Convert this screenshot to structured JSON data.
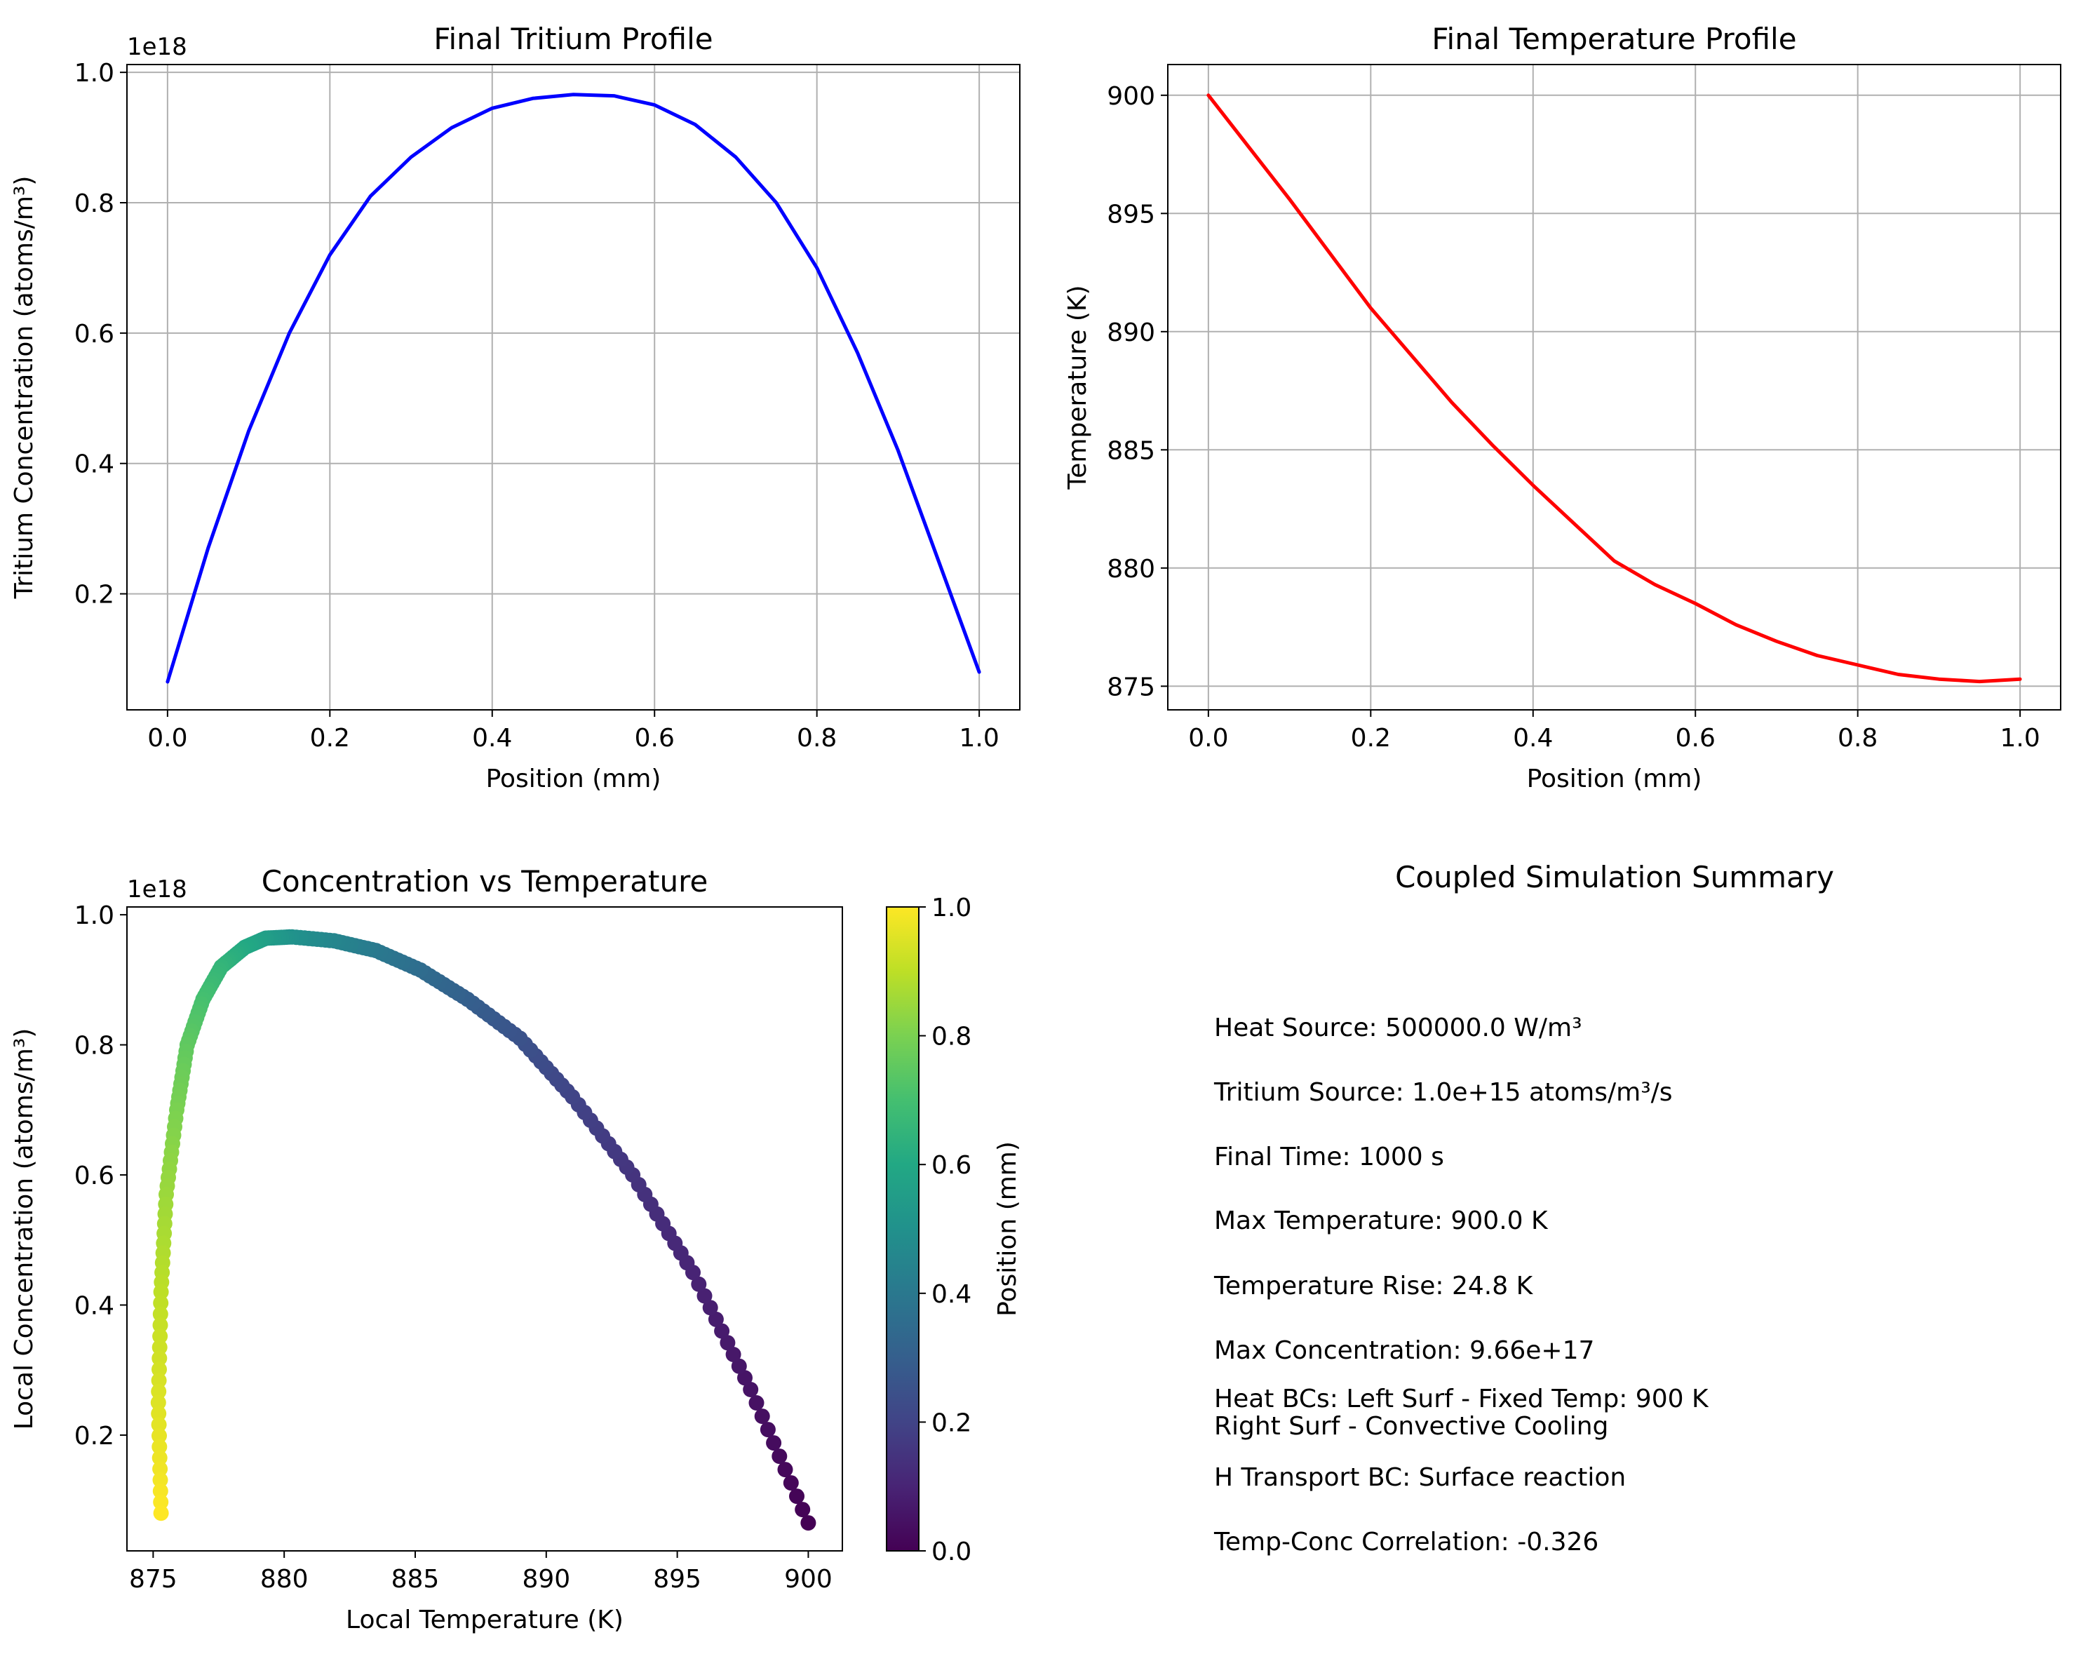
{
  "chart_data": [
    {
      "type": "line",
      "title": "Final Tritium Profile",
      "xlabel": "Position (mm)",
      "ylabel": "Tritium Concentration (atoms/m³)",
      "offset_label": "1e18",
      "xlim": [
        -0.05,
        1.05
      ],
      "ylim": [
        0.022,
        1.012
      ],
      "xticks": [
        0.0,
        0.2,
        0.4,
        0.6,
        0.8,
        1.0
      ],
      "xtick_labels": [
        "0.0",
        "0.2",
        "0.4",
        "0.6",
        "0.8",
        "1.0"
      ],
      "yticks": [
        0.2,
        0.4,
        0.6,
        0.8,
        1.0
      ],
      "ytick_labels": [
        "0.2",
        "0.4",
        "0.6",
        "0.8",
        "1.0"
      ],
      "grid": true,
      "series": [
        {
          "color": "#0000ff",
          "x": [
            0.0,
            0.05,
            0.1,
            0.15,
            0.2,
            0.25,
            0.3,
            0.35,
            0.4,
            0.45,
            0.5,
            0.55,
            0.6,
            0.65,
            0.7,
            0.75,
            0.8,
            0.85,
            0.9,
            0.95,
            1.0
          ],
          "values": [
            0.065,
            0.27,
            0.45,
            0.6,
            0.72,
            0.81,
            0.87,
            0.915,
            0.945,
            0.96,
            0.966,
            0.964,
            0.95,
            0.92,
            0.87,
            0.8,
            0.7,
            0.57,
            0.42,
            0.25,
            0.08
          ]
        }
      ]
    },
    {
      "type": "line",
      "title": "Final Temperature Profile",
      "xlabel": "Position (mm)",
      "ylabel": "Temperature (K)",
      "xlim": [
        -0.05,
        1.05
      ],
      "ylim": [
        874.0,
        901.3
      ],
      "xticks": [
        0.0,
        0.2,
        0.4,
        0.6,
        0.8,
        1.0
      ],
      "xtick_labels": [
        "0.0",
        "0.2",
        "0.4",
        "0.6",
        "0.8",
        "1.0"
      ],
      "yticks": [
        875,
        880,
        885,
        890,
        895,
        900
      ],
      "ytick_labels": [
        "875",
        "880",
        "885",
        "890",
        "895",
        "900"
      ],
      "grid": true,
      "series": [
        {
          "color": "#ff0000",
          "x": [
            0.0,
            0.05,
            0.1,
            0.15,
            0.2,
            0.25,
            0.3,
            0.35,
            0.4,
            0.45,
            0.5,
            0.55,
            0.6,
            0.65,
            0.7,
            0.75,
            0.8,
            0.85,
            0.9,
            0.95,
            1.0
          ],
          "values": [
            900.0,
            897.8,
            895.6,
            893.3,
            891.0,
            889.0,
            887.0,
            885.2,
            883.5,
            881.9,
            880.3,
            879.3,
            878.5,
            877.6,
            876.9,
            876.3,
            875.9,
            875.5,
            875.3,
            875.2,
            875.3
          ]
        }
      ]
    },
    {
      "type": "scatter",
      "title": "Concentration vs Temperature",
      "xlabel": "Local Temperature (K)",
      "ylabel": "Local Concentration (atoms/m³)",
      "offset_label": "1e18",
      "xlim": [
        874.0,
        901.3
      ],
      "ylim": [
        0.022,
        1.012
      ],
      "xticks": [
        875,
        880,
        885,
        890,
        895,
        900
      ],
      "xtick_labels": [
        "875",
        "880",
        "885",
        "890",
        "895",
        "900"
      ],
      "yticks": [
        0.2,
        0.4,
        0.6,
        0.8,
        1.0
      ],
      "ytick_labels": [
        "0.2",
        "0.4",
        "0.6",
        "0.8",
        "1.0"
      ],
      "grid": false,
      "colorbar": {
        "label": "Position (mm)",
        "colormap": "viridis",
        "range": [
          0.0,
          1.0
        ],
        "ticks": [
          0.0,
          0.2,
          0.4,
          0.6,
          0.8,
          1.0
        ],
        "tick_labels": [
          "0.0",
          "0.2",
          "0.4",
          "0.6",
          "0.8",
          "1.0"
        ]
      },
      "series": [
        {
          "x": [
            900.0,
            897.8,
            895.6,
            893.3,
            891.0,
            889.0,
            887.0,
            885.2,
            883.5,
            881.9,
            880.3,
            879.3,
            878.5,
            877.6,
            876.9,
            876.3,
            875.9,
            875.5,
            875.3,
            875.2,
            875.3
          ],
          "values": [
            0.065,
            0.27,
            0.45,
            0.6,
            0.72,
            0.81,
            0.87,
            0.915,
            0.945,
            0.96,
            0.966,
            0.964,
            0.95,
            0.92,
            0.87,
            0.8,
            0.7,
            0.57,
            0.42,
            0.25,
            0.08
          ],
          "color_values": [
            0.0,
            0.05,
            0.1,
            0.15,
            0.2,
            0.25,
            0.3,
            0.35,
            0.4,
            0.45,
            0.5,
            0.55,
            0.6,
            0.65,
            0.7,
            0.75,
            0.8,
            0.85,
            0.9,
            0.95,
            1.0
          ]
        }
      ]
    }
  ],
  "summary": {
    "title": "Coupled Simulation Summary",
    "lines": [
      "Heat Source: 500000.0 W/m³",
      "Tritium Source: 1.0e+15 atoms/m³/s",
      "Final Time: 1000 s",
      "Max Temperature: 900.0 K",
      "Temperature Rise: 24.8 K",
      "Max Concentration: 9.66e+17",
      "Heat BCs: Left Surf - Fixed Temp: 900 K",
      "Right Surf - Convective Cooling",
      "H Transport BC: Surface reaction",
      "Temp-Conc Correlation: -0.326"
    ]
  }
}
